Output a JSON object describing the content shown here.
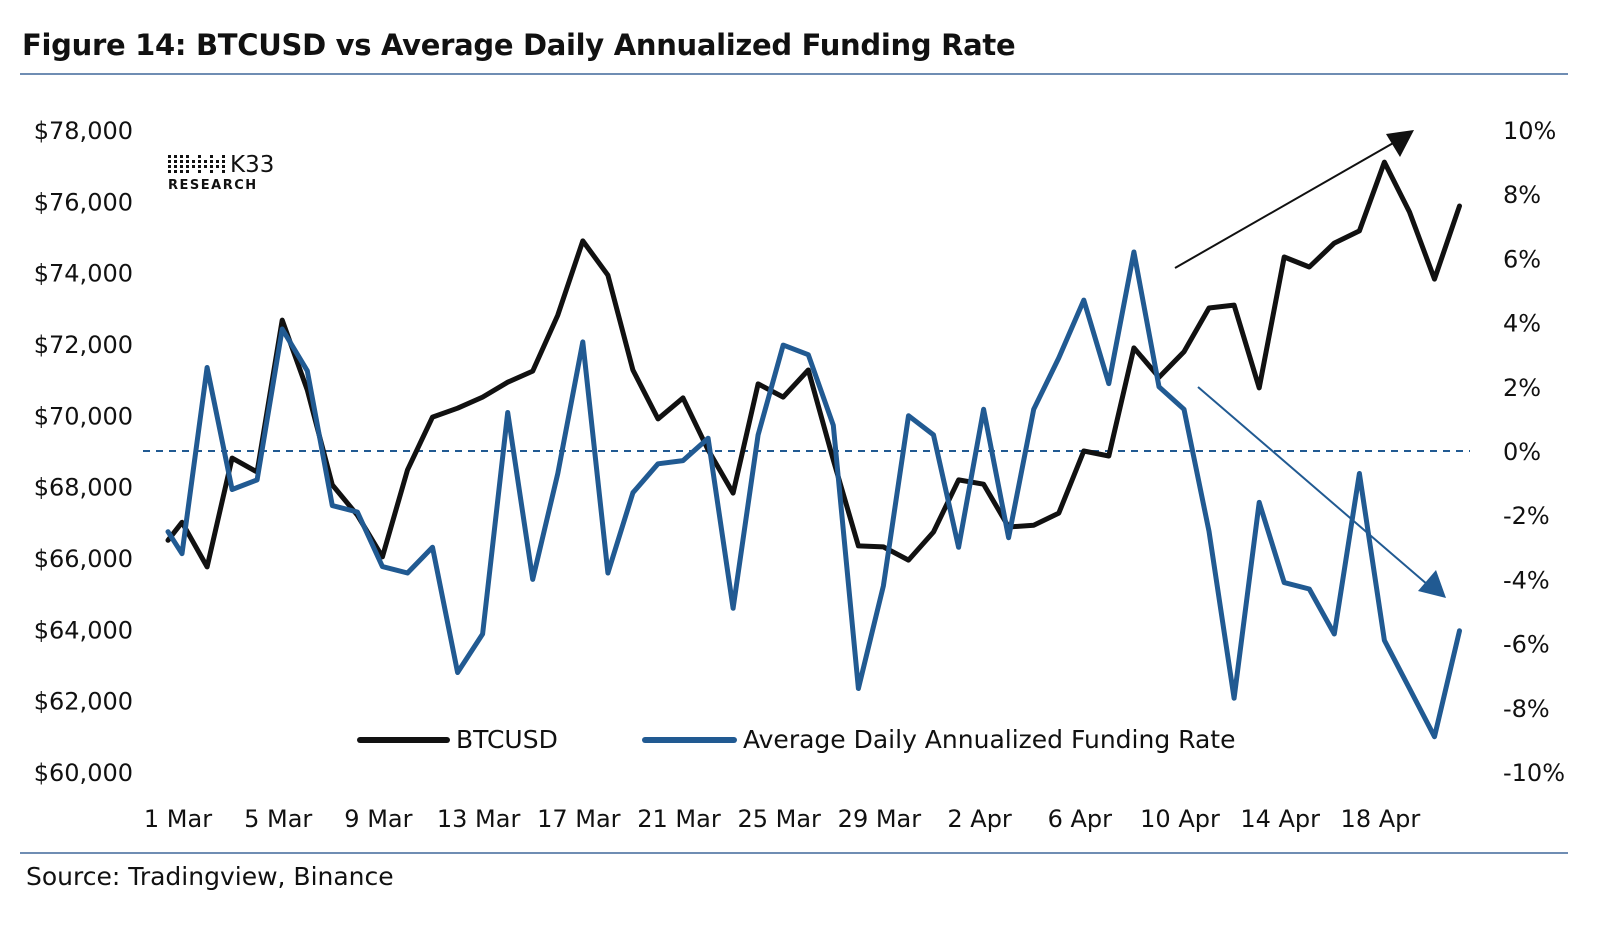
{
  "title": "Figure 14: BTCUSD vs Average Daily Annualized Funding Rate",
  "source": "Source: Tradingview, Binance",
  "logo": {
    "mark": "K33",
    "sub": "RESEARCH"
  },
  "chart_data": {
    "type": "line",
    "title": "Figure 14: BTCUSD vs Average Daily Annualized Funding Rate",
    "x_start": "1 Mar",
    "x_end": "21 Apr",
    "x_tick_labels": [
      "1 Mar",
      "5 Mar",
      "9 Mar",
      "13 Mar",
      "17 Mar",
      "21 Mar",
      "25 Mar",
      "29 Mar",
      "2 Apr",
      "6 Apr",
      "10 Apr",
      "14 Apr",
      "18 Apr"
    ],
    "y_left": {
      "range": [
        60000,
        78000
      ],
      "tick_labels": [
        "$60,000",
        "$62,000",
        "$64,000",
        "$66,000",
        "$68,000",
        "$70,000",
        "$72,000",
        "$74,000",
        "$76,000",
        "$78,000"
      ]
    },
    "y_right": {
      "range": [
        -10,
        10
      ],
      "unit": "%",
      "tick_labels": [
        "-10%",
        "-8%",
        "-6%",
        "-4%",
        "-2%",
        "0%",
        "2%",
        "4%",
        "6%",
        "8%",
        "10%"
      ]
    },
    "reference_line": {
      "axis": "right",
      "value": 0,
      "style": "dashed"
    },
    "legend_placement": "bottom-center",
    "grid": false,
    "series": [
      {
        "name": "BTCUSD",
        "axis": "left",
        "color": "#111111",
        "values": [
          67000,
          65750,
          68800,
          68410,
          72670,
          70710,
          68050,
          67200,
          66030,
          68470,
          69950,
          70200,
          70510,
          70930,
          71240,
          72810,
          74890,
          73930,
          71270,
          69900,
          70490,
          69030,
          67820,
          70880,
          70510,
          71270,
          68750,
          66340,
          66310,
          65940,
          66730,
          68190,
          68070,
          66870,
          66920,
          67260,
          69000,
          68860,
          71890,
          71070,
          71780,
          73010,
          73090,
          70770,
          74440,
          74160,
          74830,
          75170,
          77100,
          75700,
          73820,
          75870
        ]
      },
      {
        "name": "Average Daily Annualized Funding Rate",
        "axis": "right",
        "color": "#215a92",
        "values": [
          -3.2,
          2.6,
          -1.2,
          -0.9,
          3.8,
          2.5,
          -1.7,
          -1.9,
          -3.6,
          -3.8,
          -3.0,
          -6.9,
          -5.7,
          1.2,
          -4.0,
          -0.7,
          3.4,
          -3.8,
          -1.3,
          -0.4,
          -0.3,
          0.4,
          -4.9,
          0.5,
          3.3,
          3.0,
          0.8,
          -7.4,
          -4.2,
          1.1,
          0.5,
          -3.0,
          1.3,
          -2.7,
          1.3,
          2.9,
          4.7,
          2.1,
          6.2,
          2.0,
          1.3,
          -2.5,
          -7.7,
          -1.6,
          -4.1,
          -4.3,
          -5.7,
          -0.7,
          -5.9,
          -7.4,
          -8.9,
          -5.6
        ]
      }
    ],
    "annotations": [
      {
        "type": "arrow",
        "series": "BTCUSD",
        "direction": "up",
        "color": "#111111"
      },
      {
        "type": "arrow",
        "series": "Average Daily Annualized Funding Rate",
        "direction": "down",
        "color": "#215a92"
      }
    ]
  }
}
